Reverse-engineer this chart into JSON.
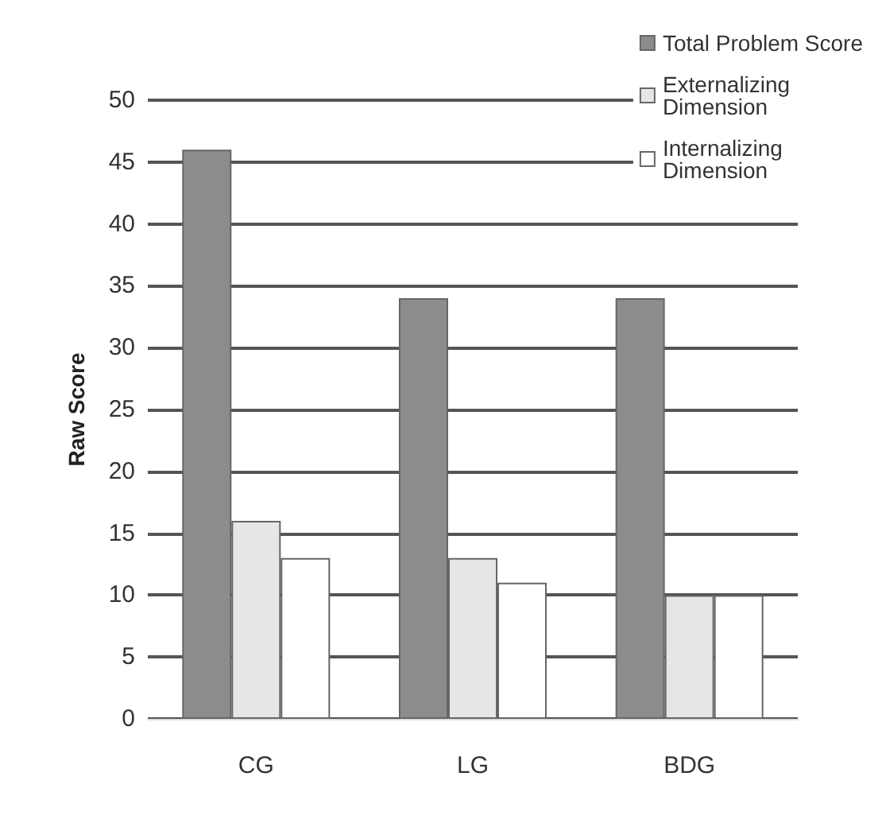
{
  "chart_data": {
    "type": "bar",
    "ylabel": "Raw Score",
    "categories": [
      "CG",
      "LG",
      "BDG"
    ],
    "series": [
      {
        "name": "Total Problem Score",
        "color": "#8c8c8c",
        "values": [
          46,
          34,
          34
        ]
      },
      {
        "name": "Externalizing Dimension",
        "color": "#e6e6e6",
        "values": [
          16,
          13,
          10
        ]
      },
      {
        "name": "Internalizing Dimension",
        "color": "#ffffff",
        "values": [
          13,
          11,
          10
        ]
      }
    ],
    "ylim": [
      0,
      50
    ],
    "yticks": [
      0,
      5,
      10,
      15,
      20,
      25,
      30,
      35,
      40,
      45,
      50
    ],
    "grid": "y",
    "legend": "top right"
  }
}
